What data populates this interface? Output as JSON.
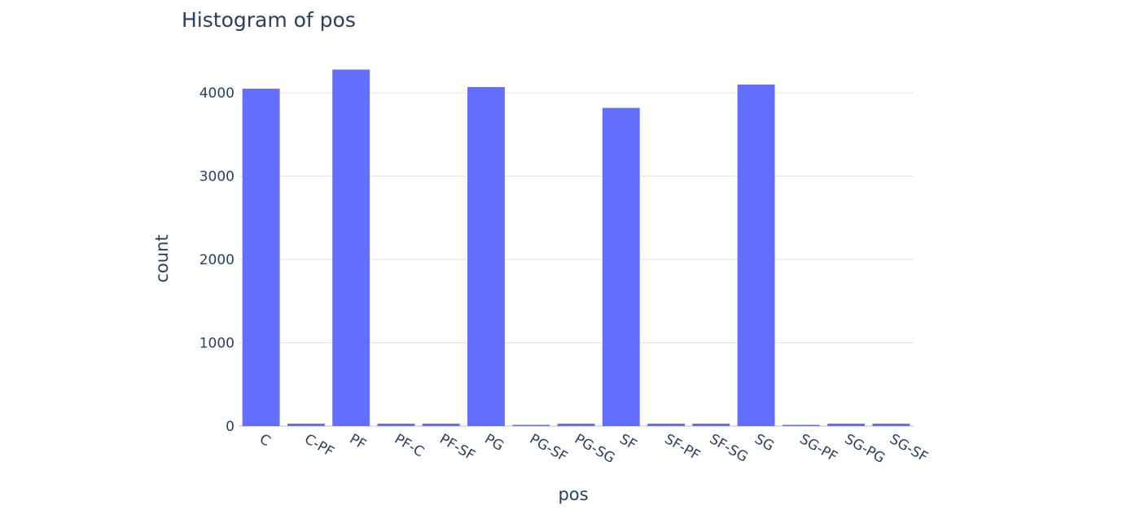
{
  "chart_data": {
    "type": "bar",
    "title": "Histogram of pos",
    "xlabel": "pos",
    "ylabel": "count",
    "categories": [
      "C",
      "C-PF",
      "PF",
      "PF-C",
      "PF-SF",
      "PG",
      "PG-SF",
      "PG-SG",
      "SF",
      "SF-PF",
      "SF-SG",
      "SG",
      "SG-PF",
      "SG-PG",
      "SG-SF"
    ],
    "values": [
      4050,
      30,
      4280,
      30,
      30,
      4070,
      15,
      30,
      3820,
      30,
      30,
      4100,
      15,
      30,
      30
    ],
    "yticks": [
      "0",
      "1000",
      "2000",
      "3000",
      "4000"
    ],
    "ylim": [
      0,
      4500
    ],
    "grid": true,
    "bar_color": "#636efa"
  }
}
